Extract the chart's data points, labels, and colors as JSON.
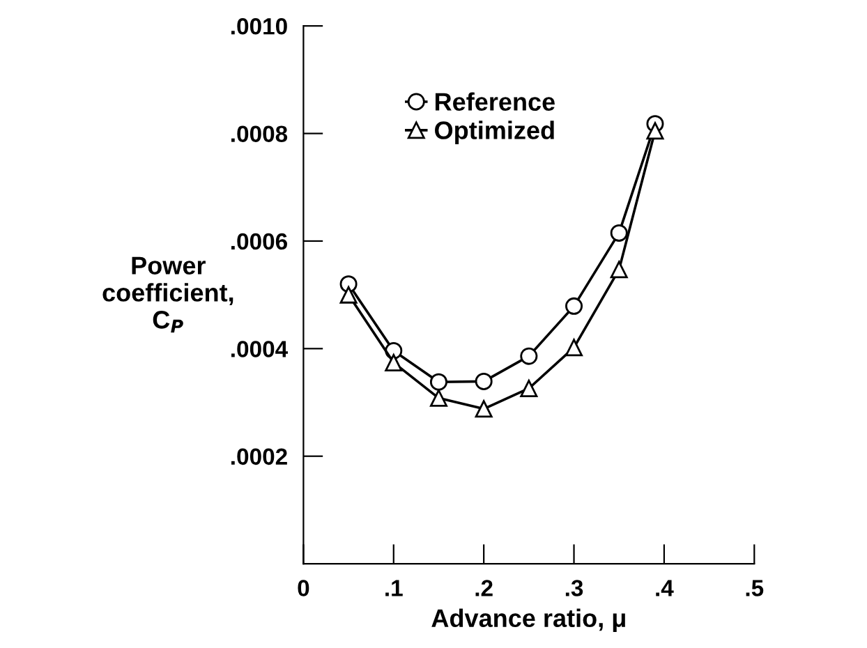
{
  "chart_data": {
    "type": "line",
    "xlabel": "Advance ratio, μ",
    "ylabel": "Power\ncoefficient,\nC$_{P}$",
    "series": [
      {
        "name": "Reference",
        "color": "#000000",
        "marker": "circle",
        "x": [
          0.05,
          0.1,
          0.15,
          0.2,
          0.25,
          0.3,
          0.35,
          0.39
        ],
        "values": [
          0.00052,
          0.000396,
          0.000338,
          0.000339,
          0.000386,
          0.000479,
          0.000615,
          0.000818
        ]
      },
      {
        "name": "Optimized",
        "color": "#000000",
        "marker": "triangle",
        "x": [
          0.05,
          0.1,
          0.15,
          0.2,
          0.25,
          0.3,
          0.35,
          0.39
        ],
        "values": [
          0.0005,
          0.000374,
          0.000308,
          0.000288,
          0.000326,
          0.000402,
          0.000547,
          0.000805
        ]
      }
    ],
    "xlim": [
      0,
      0.5
    ],
    "ylim": [
      0,
      0.001
    ],
    "xticks": [
      0,
      {
        "value": 0.1,
        "label": ".1"
      },
      {
        "value": 0.2,
        "label": ".2"
      },
      {
        "value": 0.3,
        "label": ".3"
      },
      {
        "value": 0.4,
        "label": ".4"
      },
      {
        "value": 0.5,
        "label": ".5"
      }
    ],
    "yticks": [
      {
        "value": 0.0002,
        "label": ".0002"
      },
      {
        "value": 0.0004,
        "label": ".0004"
      },
      {
        "value": 0.0006,
        "label": ".0006"
      },
      {
        "value": 0.0008,
        "label": ".0008"
      },
      {
        "value": 0.001,
        "label": ".0010"
      }
    ],
    "legend": "top left",
    "grid": false,
    "line_style": "solid"
  }
}
